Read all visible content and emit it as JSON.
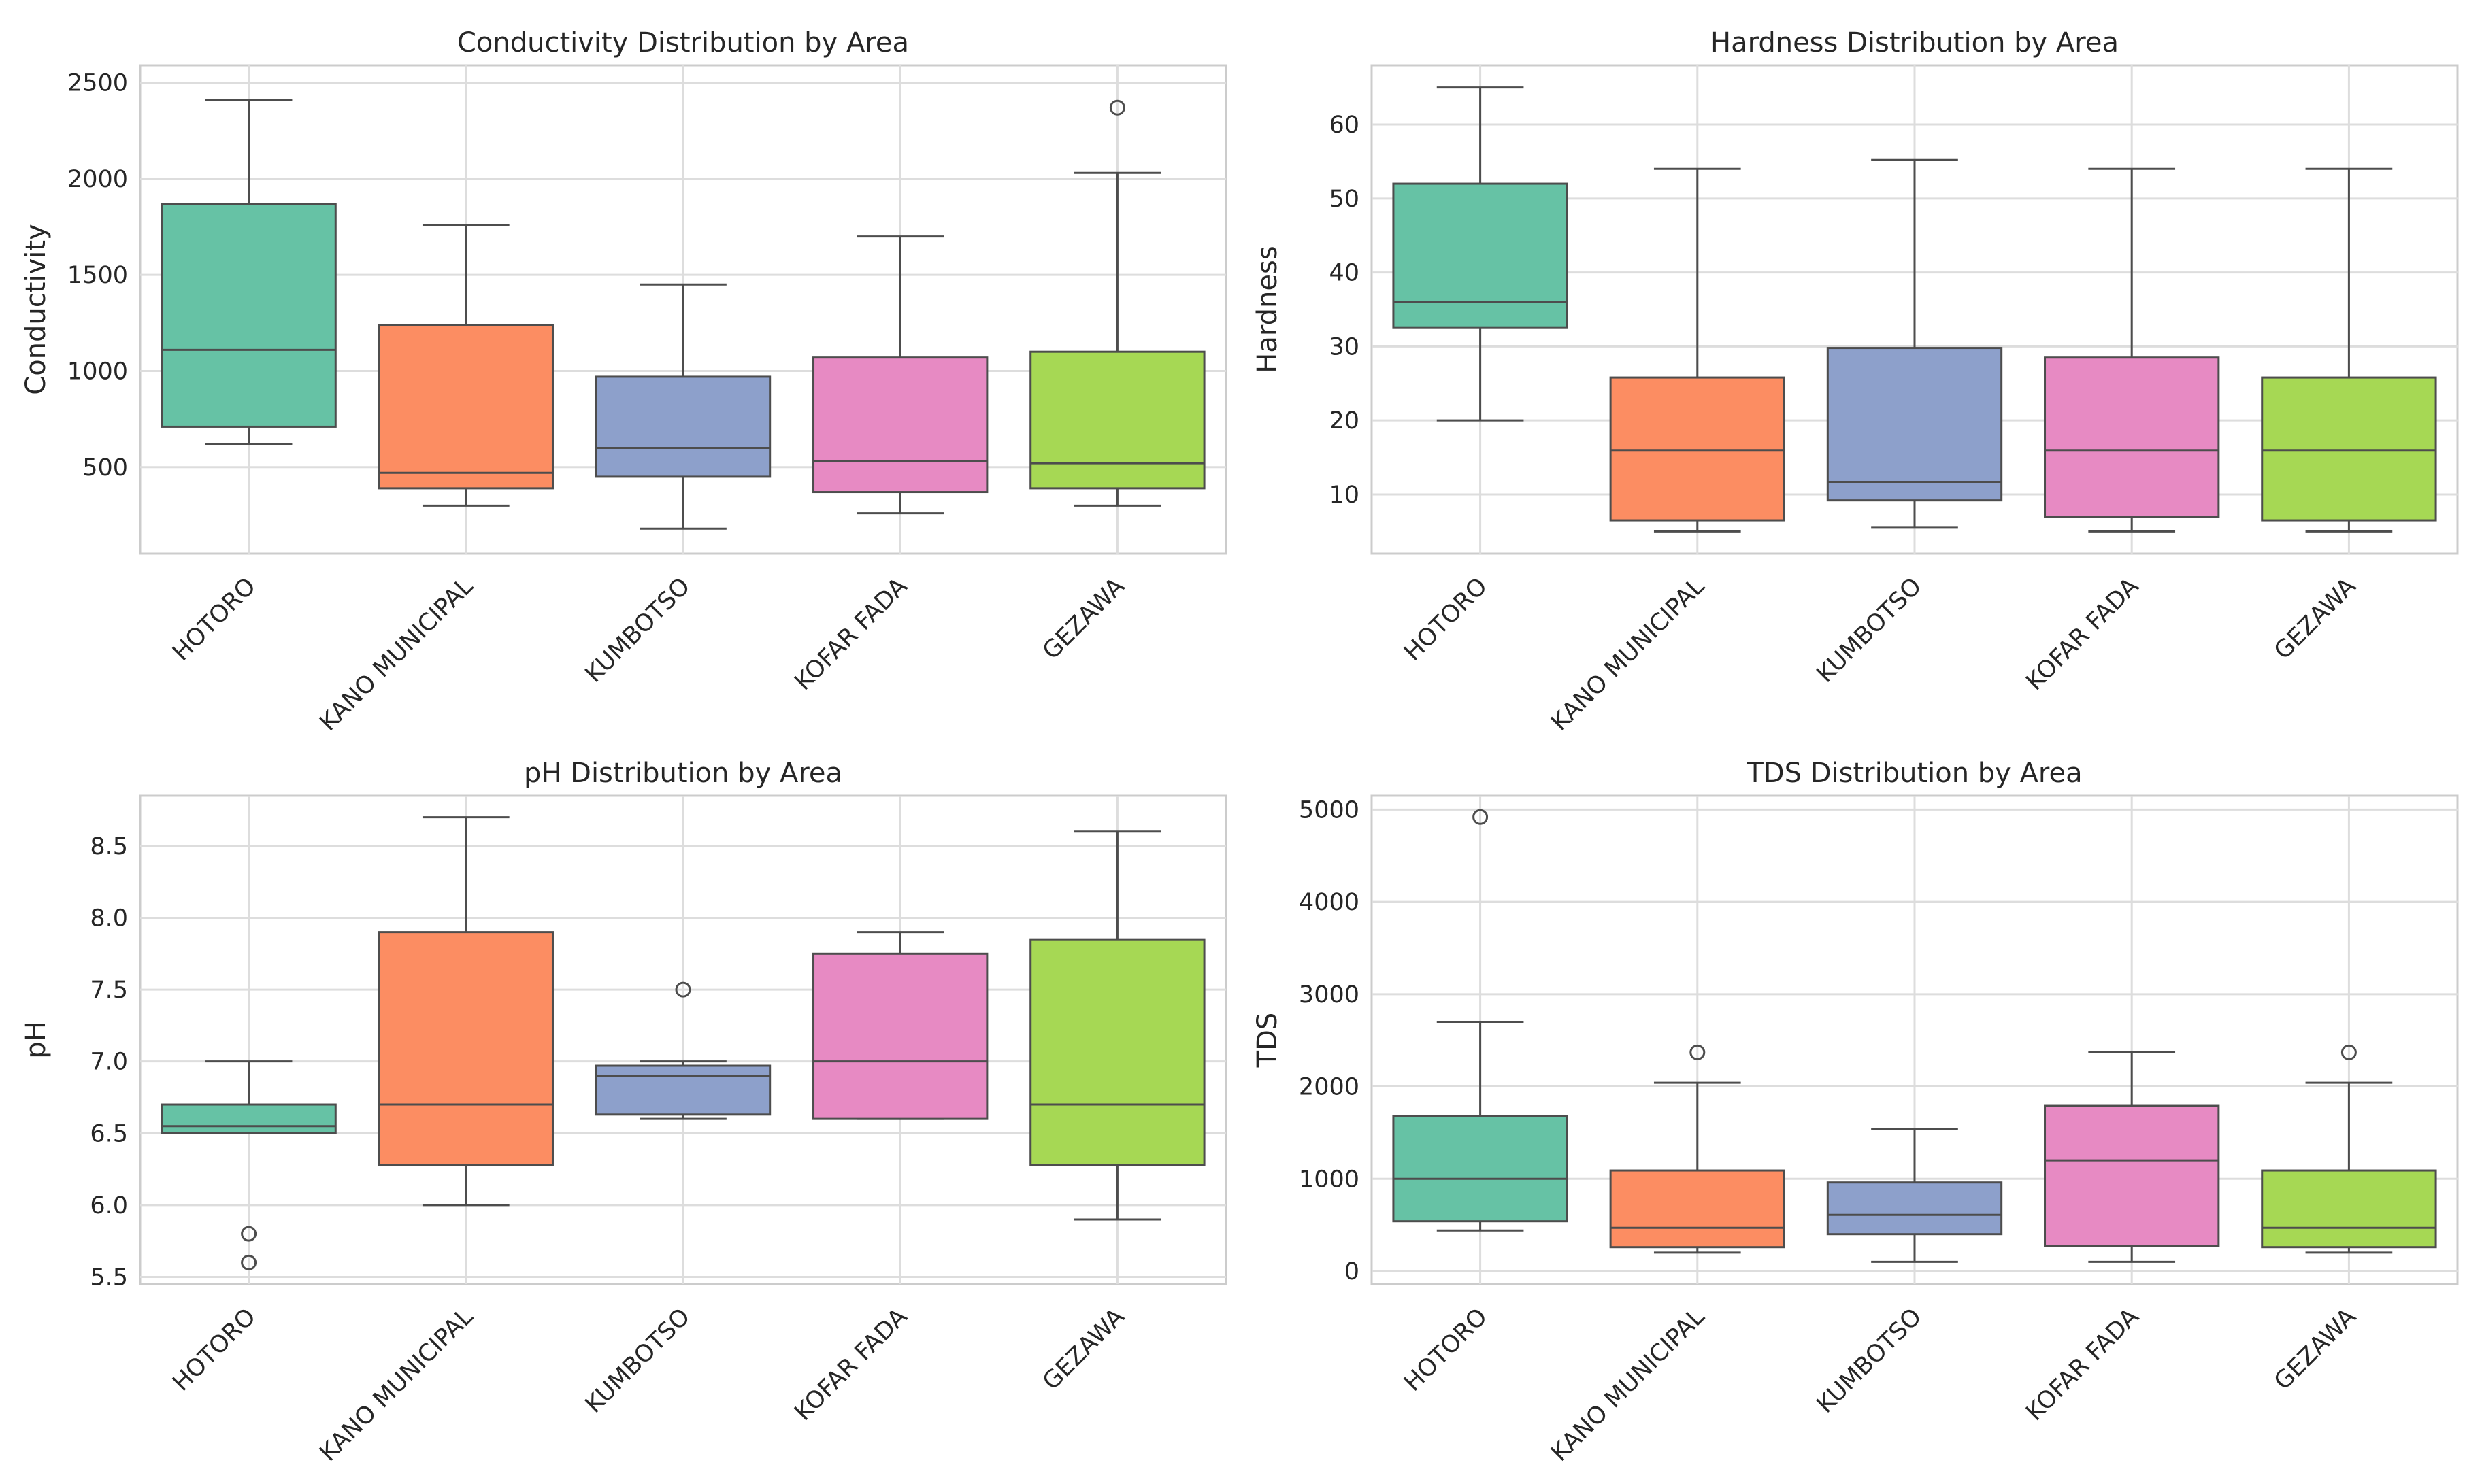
{
  "palette": [
    "#66c2a5",
    "#fc8d62",
    "#8da0cb",
    "#e78ac3",
    "#a6d854"
  ],
  "chart_data": [
    {
      "type": "box",
      "title": "Conductivity Distribution by Area",
      "xlabel": "",
      "ylabel": "Conductivity",
      "ylim": [
        50,
        2590
      ],
      "yticks": [
        500,
        1000,
        1500,
        2000,
        2500
      ],
      "yticklabels": [
        "500",
        "1000",
        "1500",
        "2000",
        "2500"
      ],
      "categories": [
        "HOTORO",
        "KANO MUNICIPAL",
        "KUMBOTSO",
        "KOFAR FADA",
        "GEZAWA"
      ],
      "boxes": [
        {
          "whislo": 620,
          "q1": 710,
          "med": 1110,
          "q3": 1870,
          "whishi": 2410,
          "fliers": []
        },
        {
          "whislo": 300,
          "q1": 390,
          "med": 470,
          "q3": 1240,
          "whishi": 1760,
          "fliers": []
        },
        {
          "whislo": 180,
          "q1": 450,
          "med": 600,
          "q3": 970,
          "whishi": 1450,
          "fliers": []
        },
        {
          "whislo": 260,
          "q1": 370,
          "med": 530,
          "q3": 1070,
          "whishi": 1700,
          "fliers": []
        },
        {
          "whislo": 300,
          "q1": 390,
          "med": 520,
          "q3": 1100,
          "whishi": 2030,
          "fliers": [
            2370
          ]
        }
      ]
    },
    {
      "type": "box",
      "title": "Hardness Distribution by Area",
      "xlabel": "",
      "ylabel": "Hardness",
      "ylim": [
        2,
        68
      ],
      "yticks": [
        10,
        20,
        30,
        40,
        50,
        60
      ],
      "yticklabels": [
        "10",
        "20",
        "30",
        "40",
        "50",
        "60"
      ],
      "categories": [
        "HOTORO",
        "KANO MUNICIPAL",
        "KUMBOTSO",
        "KOFAR FADA",
        "GEZAWA"
      ],
      "boxes": [
        {
          "whislo": 20,
          "q1": 32.5,
          "med": 36,
          "q3": 52,
          "whishi": 65,
          "fliers": []
        },
        {
          "whislo": 5,
          "q1": 6.5,
          "med": 16,
          "q3": 25.8,
          "whishi": 54,
          "fliers": []
        },
        {
          "whislo": 5.5,
          "q1": 9.2,
          "med": 11.7,
          "q3": 29.8,
          "whishi": 55.2,
          "fliers": []
        },
        {
          "whislo": 5,
          "q1": 7,
          "med": 16,
          "q3": 28.5,
          "whishi": 54,
          "fliers": []
        },
        {
          "whislo": 5,
          "q1": 6.5,
          "med": 16,
          "q3": 25.8,
          "whishi": 54,
          "fliers": []
        }
      ]
    },
    {
      "type": "box",
      "title": "pH Distribution by Area",
      "xlabel": "",
      "ylabel": "pH",
      "ylim": [
        5.45,
        8.85
      ],
      "yticks": [
        5.5,
        6.0,
        6.5,
        7.0,
        7.5,
        8.0,
        8.5
      ],
      "yticklabels": [
        "5.5",
        "6.0",
        "6.5",
        "7.0",
        "7.5",
        "8.0",
        "8.5"
      ],
      "categories": [
        "HOTORO",
        "KANO MUNICIPAL",
        "KUMBOTSO",
        "KOFAR FADA",
        "GEZAWA"
      ],
      "boxes": [
        {
          "whislo": 6.5,
          "q1": 6.5,
          "med": 6.55,
          "q3": 6.7,
          "whishi": 7.0,
          "fliers": [
            5.8,
            5.6
          ]
        },
        {
          "whislo": 6.0,
          "q1": 6.28,
          "med": 6.7,
          "q3": 7.9,
          "whishi": 8.7,
          "fliers": []
        },
        {
          "whislo": 6.6,
          "q1": 6.63,
          "med": 6.9,
          "q3": 6.97,
          "whishi": 7.0,
          "fliers": [
            7.5
          ]
        },
        {
          "whislo": 6.6,
          "q1": 6.6,
          "med": 7.0,
          "q3": 7.75,
          "whishi": 7.9,
          "fliers": []
        },
        {
          "whislo": 5.9,
          "q1": 6.28,
          "med": 6.7,
          "q3": 7.85,
          "whishi": 8.6,
          "fliers": []
        }
      ]
    },
    {
      "type": "box",
      "title": "TDS Distribution by Area",
      "xlabel": "",
      "ylabel": "TDS",
      "ylim": [
        -140,
        5150
      ],
      "yticks": [
        0,
        1000,
        2000,
        3000,
        4000,
        5000
      ],
      "yticklabels": [
        "0",
        "1000",
        "2000",
        "3000",
        "4000",
        "5000"
      ],
      "categories": [
        "HOTORO",
        "KANO MUNICIPAL",
        "KUMBOTSO",
        "KOFAR FADA",
        "GEZAWA"
      ],
      "boxes": [
        {
          "whislo": 440,
          "q1": 540,
          "med": 1000,
          "q3": 1680,
          "whishi": 2700,
          "fliers": [
            4920
          ]
        },
        {
          "whislo": 200,
          "q1": 260,
          "med": 470,
          "q3": 1090,
          "whishi": 2040,
          "fliers": [
            2370
          ]
        },
        {
          "whislo": 100,
          "q1": 400,
          "med": 610,
          "q3": 960,
          "whishi": 1540,
          "fliers": []
        },
        {
          "whislo": 100,
          "q1": 270,
          "med": 1200,
          "q3": 1790,
          "whishi": 2370,
          "fliers": []
        },
        {
          "whislo": 200,
          "q1": 260,
          "med": 470,
          "q3": 1090,
          "whishi": 2040,
          "fliers": [
            2370
          ]
        }
      ]
    }
  ]
}
